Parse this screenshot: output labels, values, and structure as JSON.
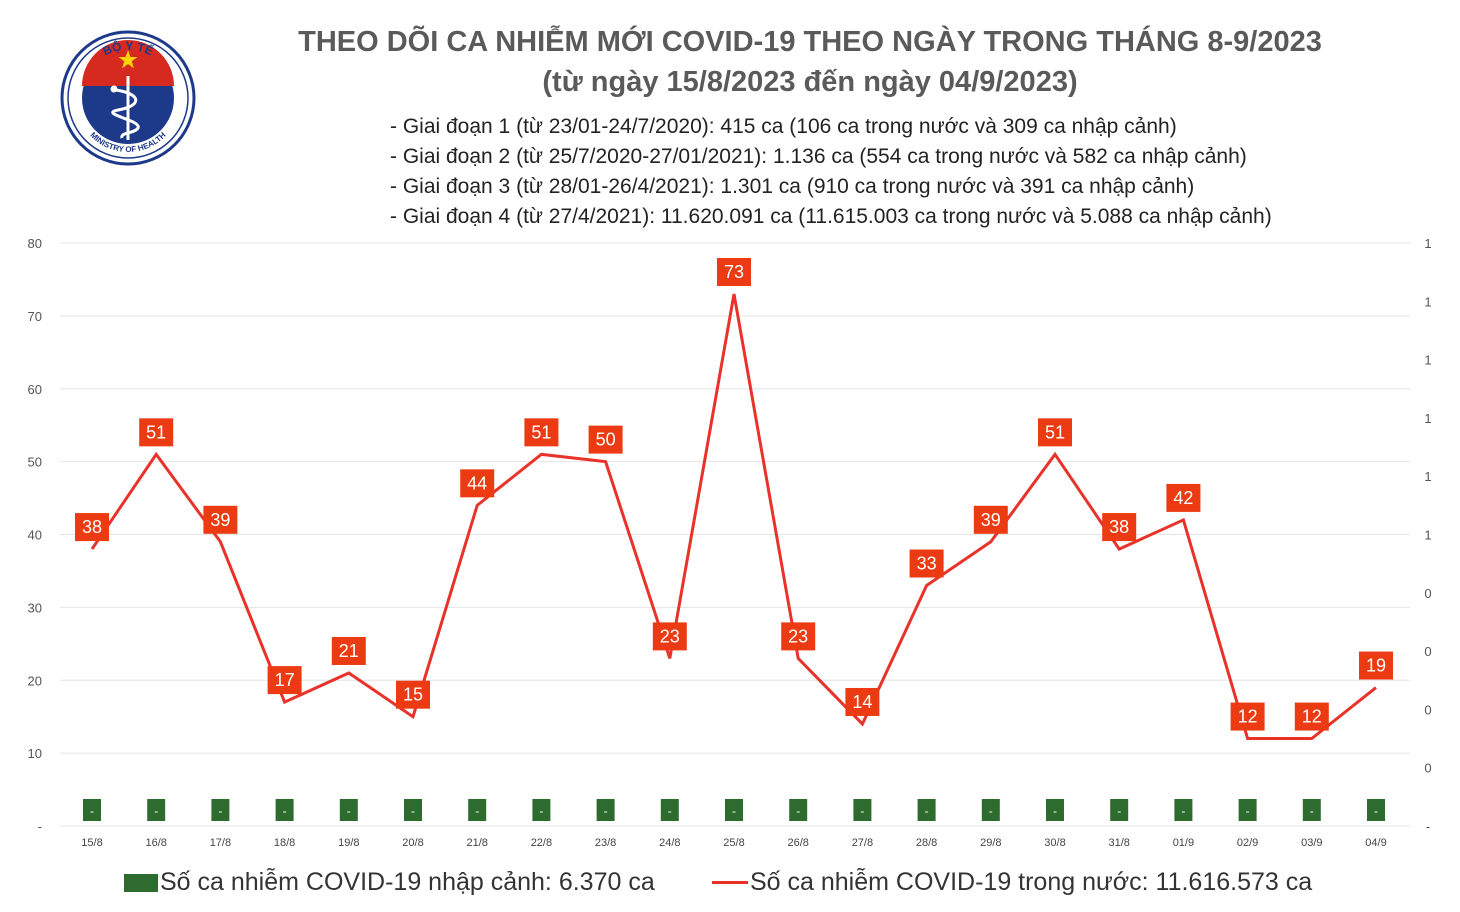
{
  "logo": {
    "top_text": "BỘ Y TẾ",
    "bottom_text": "MINISTRY OF HEALTH"
  },
  "title": {
    "line1": "THEO DÕI CA NHIỄM MỚI COVID-19 THEO NGÀY TRONG THÁNG 8-9/2023",
    "line2": "(từ ngày 15/8/2023 đến ngày 04/9/2023)"
  },
  "phases": [
    "- Giai đoạn 1 (từ 23/01-24/7/2020): 415 ca (106 ca trong nước và 309 ca nhập cảnh)",
    "- Giai đoạn 2 (từ 25/7/2020-27/01/2021): 1.136 ca (554 ca trong nước và 582 ca nhập cảnh)",
    "- Giai đoạn 3 (từ 28/01-26/4/2021): 1.301 ca (910 ca trong nước và 391 ca nhập cảnh)",
    "- Giai đoạn 4 (từ 27/4/2021): 11.620.091 ca (11.615.003 ca trong nước và 5.088 ca nhập cảnh)"
  ],
  "legend": {
    "imported": "Số ca nhiễm COVID-19 nhập cảnh: 6.370 ca",
    "domestic": "Số ca nhiễm COVID-19 trong nước: 11.616.573 ca"
  },
  "colors": {
    "line": "#e8322a",
    "label_bg": "#ec3b12",
    "bar": "#2e6b2e",
    "grid": "#e4e4e4"
  },
  "chart_data": {
    "type": "line",
    "categories": [
      "15/8",
      "16/8",
      "17/8",
      "18/8",
      "19/8",
      "20/8",
      "21/8",
      "22/8",
      "23/8",
      "24/8",
      "25/8",
      "26/8",
      "27/8",
      "28/8",
      "29/8",
      "30/8",
      "31/8",
      "01/9",
      "02/9",
      "03/9",
      "04/9"
    ],
    "series": [
      {
        "name": "Số ca nhiễm COVID-19 trong nước: 11.616.573 ca",
        "axis": "left",
        "values": [
          38,
          51,
          39,
          17,
          21,
          15,
          44,
          51,
          50,
          23,
          73,
          23,
          14,
          33,
          39,
          51,
          38,
          42,
          12,
          12,
          19
        ]
      },
      {
        "name": "Số ca nhiễm COVID-19 nhập cảnh: 6.370 ca",
        "axis": "right",
        "type": "bar",
        "values": [
          0,
          0,
          0,
          0,
          0,
          0,
          0,
          0,
          0,
          0,
          0,
          0,
          0,
          0,
          0,
          0,
          0,
          0,
          0,
          0,
          0
        ],
        "value_labels": [
          "-",
          "-",
          "-",
          "-",
          "-",
          "-",
          "-",
          "-",
          "-",
          "-",
          "-",
          "-",
          "-",
          "-",
          "-",
          "-",
          "-",
          "-",
          "-",
          "-",
          "-"
        ]
      }
    ],
    "y_left": {
      "ticks": [
        "-",
        "10",
        "20",
        "30",
        "40",
        "50",
        "60",
        "70",
        "80"
      ],
      "ylim": [
        0,
        80
      ]
    },
    "y_right": {
      "ticks": [
        "-",
        "0",
        "0",
        "0",
        "0",
        "1",
        "1",
        "1",
        "1",
        "1",
        "1"
      ]
    },
    "grid": true,
    "legend_position": "bottom"
  }
}
